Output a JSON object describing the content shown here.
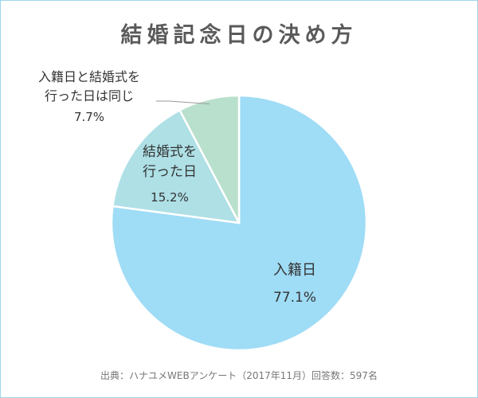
{
  "chart_data": {
    "type": "pie",
    "title": "結婚記念日の決め方",
    "slices": [
      {
        "lines": [
          "入籍日"
        ],
        "value": 77.1,
        "display": "77.1%",
        "color": "#9fdcf6"
      },
      {
        "lines": [
          "結婚式を",
          "行った日"
        ],
        "value": 15.2,
        "display": "15.2%",
        "color": "#aee0e6"
      },
      {
        "lines": [
          "入籍日と結婚式を",
          "行った日は同じ"
        ],
        "value": 7.7,
        "display": "7.7%",
        "color": "#b9e0cc"
      }
    ],
    "source": "出典：ハナユメWEBアンケート（2017年11月）回答数：597名"
  }
}
